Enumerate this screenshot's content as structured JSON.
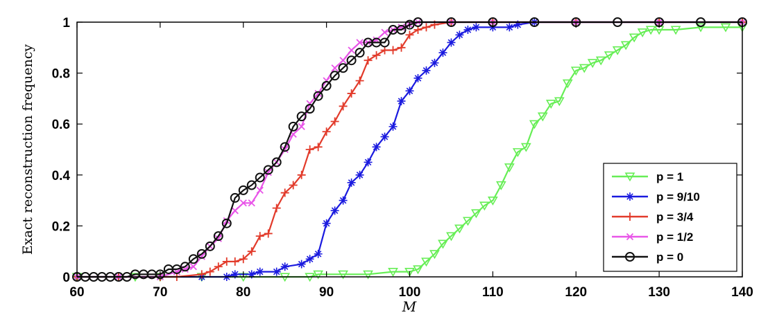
{
  "chart_data": {
    "type": "line",
    "xlabel": "M",
    "ylabel": "Exact reconstruction frequency",
    "xlim": [
      60,
      140
    ],
    "ylim": [
      0,
      1
    ],
    "xticks": [
      60,
      70,
      80,
      90,
      100,
      110,
      120,
      130,
      140
    ],
    "yticks": [
      0,
      0.2,
      0.4,
      0.6,
      0.8,
      1
    ],
    "ytick_labels": [
      "0",
      "0.2",
      "0.4",
      "0.6",
      "0.8",
      "1"
    ],
    "grid": false,
    "legend_position": "bottom-right",
    "series": [
      {
        "name": "p = 1",
        "color": "#66ee55",
        "marker": "triangle-down",
        "points": [
          [
            60,
            0
          ],
          [
            67,
            0
          ],
          [
            70,
            0
          ],
          [
            75,
            0
          ],
          [
            80,
            0
          ],
          [
            85,
            0
          ],
          [
            88,
            0
          ],
          [
            89,
            0.01
          ],
          [
            92,
            0.01
          ],
          [
            95,
            0.01
          ],
          [
            98,
            0.02
          ],
          [
            100,
            0.02
          ],
          [
            101,
            0.03
          ],
          [
            102,
            0.06
          ],
          [
            103,
            0.09
          ],
          [
            104,
            0.13
          ],
          [
            105,
            0.16
          ],
          [
            106,
            0.19
          ],
          [
            107,
            0.22
          ],
          [
            108,
            0.25
          ],
          [
            109,
            0.28
          ],
          [
            110,
            0.3
          ],
          [
            111,
            0.36
          ],
          [
            112,
            0.43
          ],
          [
            113,
            0.49
          ],
          [
            114,
            0.51
          ],
          [
            115,
            0.6
          ],
          [
            116,
            0.63
          ],
          [
            117,
            0.68
          ],
          [
            118,
            0.69
          ],
          [
            119,
            0.76
          ],
          [
            120,
            0.81
          ],
          [
            121,
            0.82
          ],
          [
            122,
            0.84
          ],
          [
            123,
            0.85
          ],
          [
            124,
            0.87
          ],
          [
            125,
            0.89
          ],
          [
            126,
            0.91
          ],
          [
            127,
            0.94
          ],
          [
            128,
            0.96
          ],
          [
            129,
            0.97
          ],
          [
            130,
            0.97
          ],
          [
            132,
            0.97
          ],
          [
            135,
            0.98
          ],
          [
            138,
            0.98
          ],
          [
            140,
            0.98
          ]
        ]
      },
      {
        "name": "p = 9/10",
        "color": "#1a1adf",
        "marker": "asterisk",
        "points": [
          [
            60,
            0
          ],
          [
            65,
            0
          ],
          [
            70,
            0
          ],
          [
            75,
            0
          ],
          [
            78,
            0
          ],
          [
            79,
            0.01
          ],
          [
            81,
            0.01
          ],
          [
            82,
            0.02
          ],
          [
            84,
            0.02
          ],
          [
            85,
            0.04
          ],
          [
            87,
            0.05
          ],
          [
            88,
            0.07
          ],
          [
            89,
            0.09
          ],
          [
            90,
            0.21
          ],
          [
            91,
            0.26
          ],
          [
            92,
            0.3
          ],
          [
            93,
            0.37
          ],
          [
            94,
            0.4
          ],
          [
            95,
            0.45
          ],
          [
            96,
            0.51
          ],
          [
            97,
            0.55
          ],
          [
            98,
            0.59
          ],
          [
            99,
            0.69
          ],
          [
            100,
            0.73
          ],
          [
            101,
            0.78
          ],
          [
            102,
            0.81
          ],
          [
            103,
            0.84
          ],
          [
            104,
            0.88
          ],
          [
            105,
            0.92
          ],
          [
            106,
            0.95
          ],
          [
            107,
            0.97
          ],
          [
            108,
            0.98
          ],
          [
            110,
            0.98
          ],
          [
            112,
            0.98
          ],
          [
            113,
            0.99
          ],
          [
            115,
            1
          ],
          [
            120,
            1
          ],
          [
            130,
            1
          ],
          [
            140,
            1
          ]
        ]
      },
      {
        "name": "p = 3/4",
        "color": "#e23a2a",
        "marker": "plus",
        "points": [
          [
            60,
            0
          ],
          [
            65,
            0
          ],
          [
            70,
            0
          ],
          [
            72,
            0
          ],
          [
            75,
            0.01
          ],
          [
            76,
            0.02
          ],
          [
            77,
            0.04
          ],
          [
            78,
            0.06
          ],
          [
            79,
            0.06
          ],
          [
            80,
            0.07
          ],
          [
            81,
            0.1
          ],
          [
            82,
            0.16
          ],
          [
            83,
            0.17
          ],
          [
            84,
            0.27
          ],
          [
            85,
            0.33
          ],
          [
            86,
            0.36
          ],
          [
            87,
            0.4
          ],
          [
            88,
            0.5
          ],
          [
            89,
            0.51
          ],
          [
            90,
            0.57
          ],
          [
            91,
            0.61
          ],
          [
            92,
            0.67
          ],
          [
            93,
            0.72
          ],
          [
            94,
            0.77
          ],
          [
            95,
            0.85
          ],
          [
            96,
            0.87
          ],
          [
            97,
            0.89
          ],
          [
            98,
            0.89
          ],
          [
            99,
            0.9
          ],
          [
            100,
            0.95
          ],
          [
            101,
            0.97
          ],
          [
            102,
            0.98
          ],
          [
            103,
            0.99
          ],
          [
            105,
            1
          ],
          [
            110,
            1
          ],
          [
            120,
            1
          ],
          [
            130,
            1
          ],
          [
            140,
            1
          ]
        ]
      },
      {
        "name": "p = 1/2",
        "color": "#e855e8",
        "marker": "x",
        "points": [
          [
            60,
            0
          ],
          [
            65,
            0
          ],
          [
            70,
            0
          ],
          [
            72,
            0.02
          ],
          [
            73,
            0.03
          ],
          [
            74,
            0.04
          ],
          [
            75,
            0.08
          ],
          [
            76,
            0.12
          ],
          [
            77,
            0.15
          ],
          [
            78,
            0.22
          ],
          [
            79,
            0.26
          ],
          [
            80,
            0.29
          ],
          [
            81,
            0.29
          ],
          [
            82,
            0.34
          ],
          [
            83,
            0.41
          ],
          [
            84,
            0.45
          ],
          [
            85,
            0.5
          ],
          [
            86,
            0.56
          ],
          [
            87,
            0.59
          ],
          [
            88,
            0.68
          ],
          [
            89,
            0.72
          ],
          [
            90,
            0.77
          ],
          [
            91,
            0.82
          ],
          [
            92,
            0.85
          ],
          [
            93,
            0.89
          ],
          [
            94,
            0.92
          ],
          [
            95,
            0.92
          ],
          [
            96,
            0.93
          ],
          [
            97,
            0.96
          ],
          [
            98,
            0.97
          ],
          [
            99,
            0.98
          ],
          [
            100,
            0.99
          ],
          [
            101,
            1
          ],
          [
            105,
            1
          ],
          [
            110,
            1
          ],
          [
            120,
            1
          ],
          [
            130,
            1
          ],
          [
            140,
            1
          ]
        ]
      },
      {
        "name": "p = 0",
        "color": "#111111",
        "marker": "circle",
        "points": [
          [
            60,
            0
          ],
          [
            61,
            0
          ],
          [
            62,
            0
          ],
          [
            63,
            0
          ],
          [
            64,
            0
          ],
          [
            65,
            0
          ],
          [
            66,
            0
          ],
          [
            67,
            0.01
          ],
          [
            68,
            0.01
          ],
          [
            69,
            0.01
          ],
          [
            70,
            0.01
          ],
          [
            71,
            0.03
          ],
          [
            72,
            0.03
          ],
          [
            73,
            0.04
          ],
          [
            74,
            0.07
          ],
          [
            75,
            0.09
          ],
          [
            76,
            0.12
          ],
          [
            77,
            0.16
          ],
          [
            78,
            0.21
          ],
          [
            79,
            0.31
          ],
          [
            80,
            0.34
          ],
          [
            81,
            0.36
          ],
          [
            82,
            0.39
          ],
          [
            83,
            0.42
          ],
          [
            84,
            0.45
          ],
          [
            85,
            0.51
          ],
          [
            86,
            0.59
          ],
          [
            87,
            0.63
          ],
          [
            88,
            0.66
          ],
          [
            89,
            0.71
          ],
          [
            90,
            0.75
          ],
          [
            91,
            0.79
          ],
          [
            92,
            0.82
          ],
          [
            93,
            0.85
          ],
          [
            94,
            0.88
          ],
          [
            95,
            0.92
          ],
          [
            96,
            0.92
          ],
          [
            97,
            0.92
          ],
          [
            98,
            0.97
          ],
          [
            99,
            0.97
          ],
          [
            100,
            0.99
          ],
          [
            101,
            1
          ],
          [
            105,
            1
          ],
          [
            110,
            1
          ],
          [
            115,
            1
          ],
          [
            120,
            1
          ],
          [
            125,
            1
          ],
          [
            130,
            1
          ],
          [
            135,
            1
          ],
          [
            140,
            1
          ]
        ]
      }
    ]
  }
}
